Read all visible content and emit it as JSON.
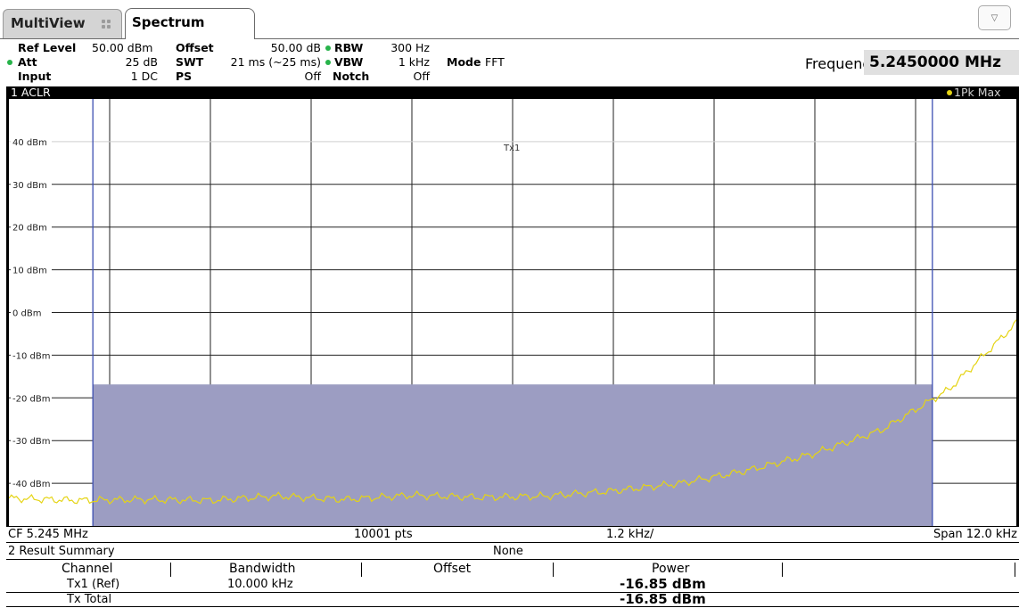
{
  "tabs": {
    "multiview": "MultiView",
    "spectrum": "Spectrum"
  },
  "settings": {
    "ref_level_label": "Ref Level",
    "ref_level_value": "50.00 dBm",
    "att_label": "Att",
    "att_value": "25 dB",
    "input_label": "Input",
    "input_value": "1 DC",
    "offset_label": "Offset",
    "offset_value": "50.00 dB",
    "swt_label": "SWT",
    "swt_value": "21 ms (~25 ms)",
    "ps_label": "PS",
    "ps_value": "Off",
    "rbw_label": "RBW",
    "rbw_value": "300 Hz",
    "vbw_label": "VBW",
    "vbw_value": "1 kHz",
    "notch_label": "Notch",
    "notch_value": "Off",
    "mode_label": "Mode",
    "mode_value": "FFT",
    "frequency_label": "Frequency",
    "frequency_value": "5.2450000 MHz"
  },
  "diagram": {
    "window_title": "1 ACLR",
    "trace_label": "1Pk Max",
    "channel_label": "Tx1",
    "y_ticks": [
      "40 dBm",
      "30 dBm",
      "20 dBm",
      "10 dBm",
      "0 dBm",
      "-10 dBm",
      "-20 dBm",
      "-30 dBm",
      "-40 dBm"
    ],
    "footer_cf": "CF 5.245 MHz",
    "footer_pts": "10001 pts",
    "footer_div": "1.2 kHz/",
    "footer_span": "Span 12.0 kHz"
  },
  "result_summary": {
    "title": "2 Result Summary",
    "mode": "None",
    "headers": [
      "Channel",
      "Bandwidth",
      "Offset",
      "Power"
    ],
    "rows": [
      {
        "channel": "Tx1 (Ref)",
        "bandwidth": "10.000 kHz",
        "power": "-16.85 dBm"
      },
      {
        "channel": "Tx Total",
        "bandwidth": "",
        "power": "-16.85 dBm"
      }
    ]
  },
  "chart_data": {
    "type": "line",
    "ylim": [
      -50,
      50
    ],
    "xlim": [
      5.239,
      5.251
    ],
    "xunit": "MHz",
    "yunit": "dBm",
    "channel_bar": {
      "name": "Tx1",
      "x_range": [
        5.24,
        5.25
      ],
      "power": -16.85
    },
    "series": [
      {
        "name": "1Pk Max",
        "color": "#e5d414",
        "x": [
          5.239,
          5.2398,
          5.2406,
          5.2414,
          5.2422,
          5.243,
          5.2438,
          5.2446,
          5.2454,
          5.2462,
          5.247,
          5.2478,
          5.2486,
          5.2494,
          5.2502,
          5.251
        ],
        "y": [
          -43.5,
          -44.0,
          -43.8,
          -44.0,
          -43.0,
          -43.8,
          -42.8,
          -43.3,
          -43.0,
          -41.8,
          -40.0,
          -37.0,
          -33.0,
          -27.5,
          -18.0,
          -2.5
        ]
      }
    ],
    "colors": {
      "trace": "#e5d414",
      "channel": "#9c9dc2",
      "grid": "#222222",
      "marker_line": "#3d4fb2"
    }
  }
}
